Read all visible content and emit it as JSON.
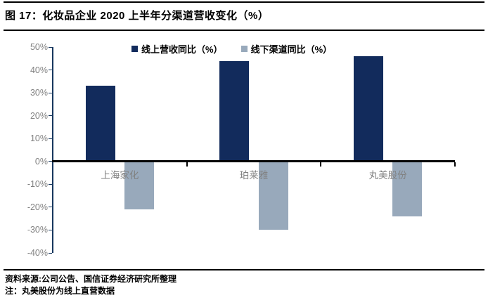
{
  "header": {
    "title": "图 17：化妆品企业 2020 上半年分渠道营收变化（%）"
  },
  "chart_data": {
    "type": "bar",
    "title": "化妆品企业 2020 上半年分渠道营收变化（%）",
    "categories": [
      "上海家化",
      "珀莱雅",
      "丸美股份"
    ],
    "series": [
      {
        "name": "线上营收同比（%）",
        "color": "#122b5c",
        "values": [
          33,
          44,
          46
        ]
      },
      {
        "name": "线下渠道同比（%）",
        "color": "#98a9bb",
        "values": [
          -21,
          -30,
          -24
        ]
      }
    ],
    "ylim": [
      -40,
      50
    ],
    "ytick_labels": [
      "50%",
      "40%",
      "30%",
      "20%",
      "10%",
      "0%",
      "-10%",
      "-20%",
      "-30%",
      "-40%"
    ],
    "grid": false,
    "legend_position": "top-center",
    "axis_line_color": "#17375e",
    "zero_line_color": "#000000",
    "axis_text_color": "#808080",
    "category_text_color": "#808080"
  },
  "footer": {
    "source": "资料来源:公司公告、国信证券经济研究所整理",
    "note": "注：丸美股份为线上直营数据"
  }
}
